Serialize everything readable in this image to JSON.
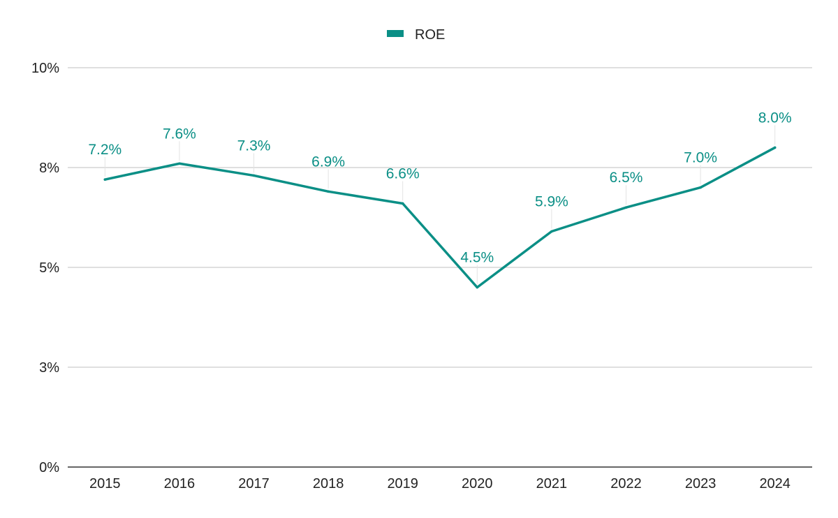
{
  "chart_data": {
    "type": "line",
    "categories": [
      "2015",
      "2016",
      "2017",
      "2018",
      "2019",
      "2020",
      "2021",
      "2022",
      "2023",
      "2024"
    ],
    "series": [
      {
        "name": "ROE",
        "values": [
          7.2,
          7.6,
          7.3,
          6.9,
          6.6,
          4.5,
          5.9,
          6.5,
          7.0,
          8.0
        ],
        "labels": [
          "7.2%",
          "7.6%",
          "7.3%",
          "6.9%",
          "6.6%",
          "4.5%",
          "5.9%",
          "6.5%",
          "7.0%",
          "8.0%"
        ],
        "color": "#0b8f86"
      }
    ],
    "ylim": [
      0,
      10
    ],
    "yticks": [
      0,
      2.5,
      5,
      7.5,
      10
    ],
    "ytick_labels": [
      "0%",
      "3%",
      "5%",
      "8%",
      "10%"
    ],
    "grid": true,
    "legend_position": "top-center"
  }
}
